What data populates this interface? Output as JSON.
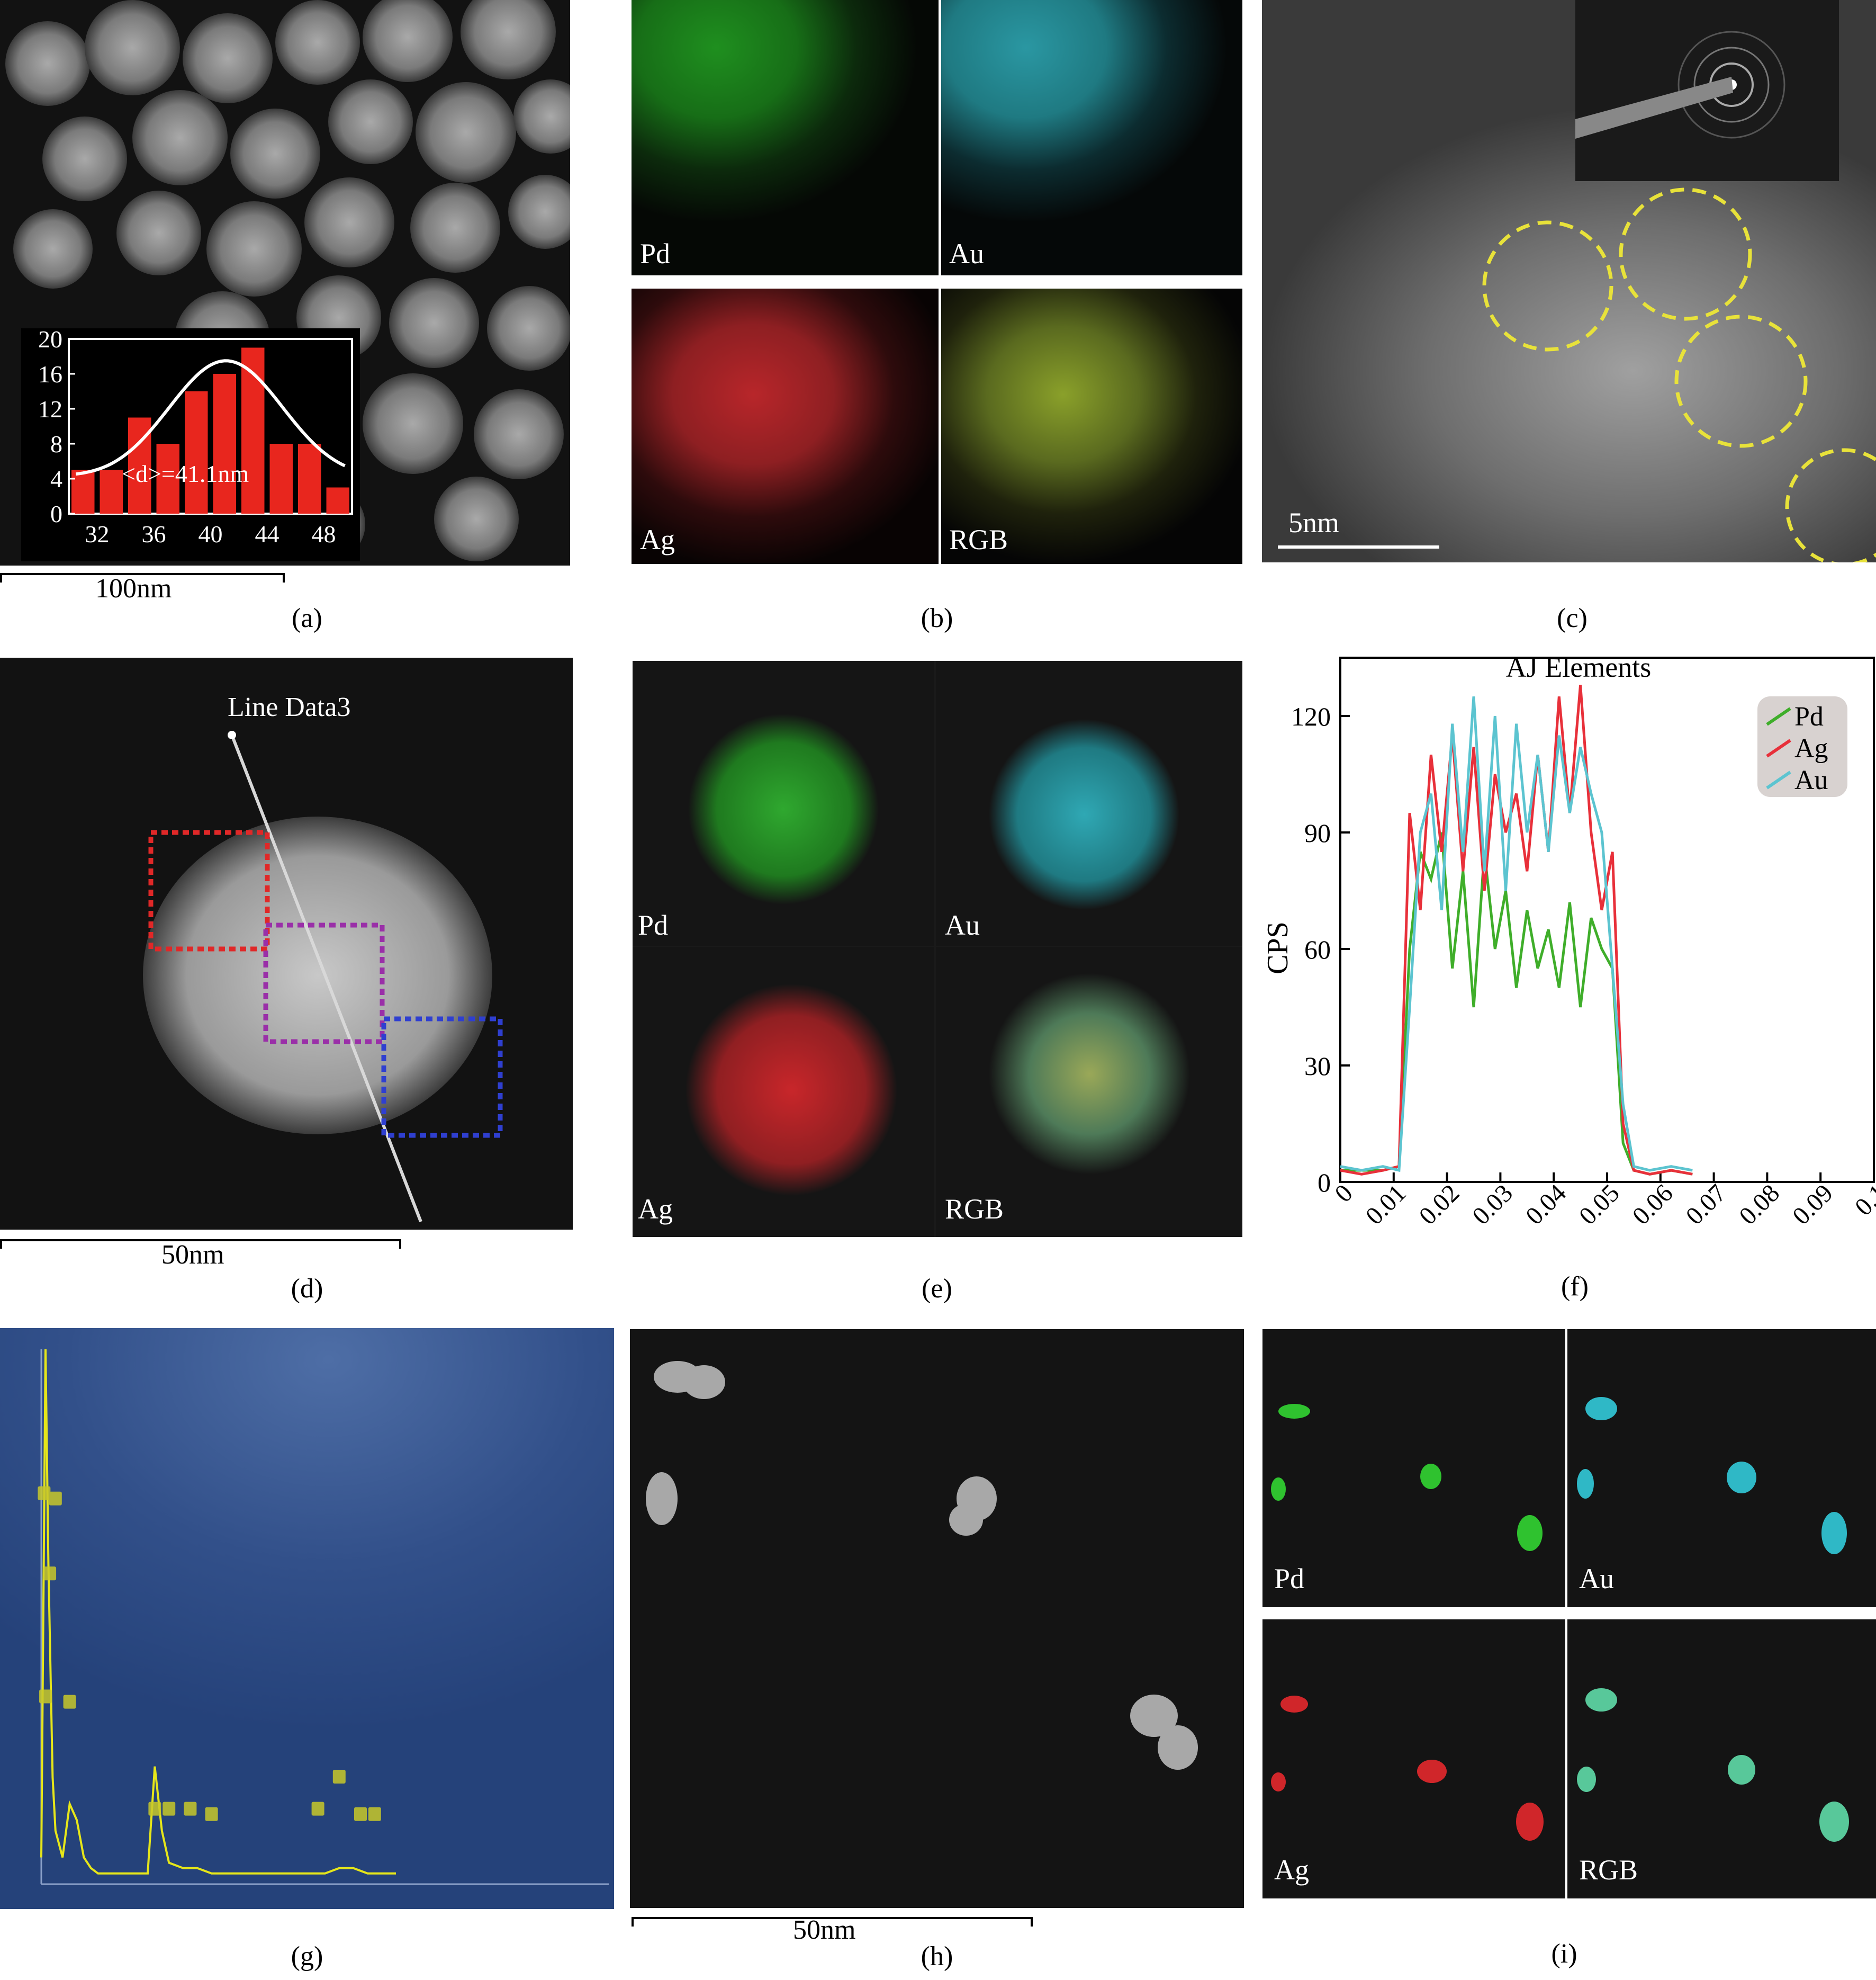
{
  "panels": {
    "a": {
      "caption": "(a)",
      "scale_bar": "100nm",
      "inset": {
        "chart_data": {
          "type": "bar",
          "y_ticks": [
            "0",
            "4",
            "8",
            "12",
            "16",
            "20"
          ],
          "x_ticks": [
            "32",
            "36",
            "40",
            "44",
            "48"
          ],
          "categories": [
            31,
            33,
            35,
            37,
            39,
            41,
            43,
            45,
            47,
            49
          ],
          "values": [
            5,
            5,
            11,
            8,
            14,
            16,
            19,
            8,
            8,
            3
          ],
          "ylim": [
            0,
            20
          ],
          "xlim": [
            30,
            50
          ],
          "fit": "gaussian",
          "annotation": "<d>=41.1nm",
          "bar_color": "#e8261e",
          "fit_color": "#ffffff"
        }
      }
    },
    "b": {
      "caption": "(b)",
      "labels": {
        "pd": "Pd",
        "au": "Au",
        "ag": "Ag",
        "rgb": "RGB"
      }
    },
    "c": {
      "caption": "(c)",
      "scale_bar": "5nm"
    },
    "d": {
      "caption": "(d)",
      "scale_bar": "50nm",
      "line_label": "Line Data3"
    },
    "e": {
      "caption": "(e)",
      "labels": {
        "pd": "Pd",
        "au": "Au",
        "ag": "Ag",
        "rgb": "RGB"
      }
    },
    "f": {
      "caption": "(f)",
      "chart_data": {
        "type": "line",
        "title": "AJ Elements",
        "ylabel": "CPS",
        "xlabel": "",
        "xlim": [
          0,
          0.1
        ],
        "ylim": [
          0,
          135
        ],
        "x_ticks": [
          "0",
          "0.01",
          "0.02",
          "0.03",
          "0.04",
          "0.05",
          "0.06",
          "0.07",
          "0.08",
          "0.09",
          "0.1"
        ],
        "y_ticks": [
          "0",
          "30",
          "60",
          "90",
          "120"
        ],
        "legend_position": "top-right",
        "x": [
          0,
          0.004,
          0.008,
          0.011,
          0.013,
          0.015,
          0.017,
          0.019,
          0.021,
          0.023,
          0.025,
          0.027,
          0.029,
          0.031,
          0.033,
          0.035,
          0.037,
          0.039,
          0.041,
          0.043,
          0.045,
          0.047,
          0.049,
          0.051,
          0.053,
          0.055,
          0.058,
          0.062,
          0.066
        ],
        "series": [
          {
            "name": "Pd",
            "color": "#3fae2a",
            "values": [
              3,
              3,
              3,
              4,
              60,
              85,
              78,
              90,
              55,
              80,
              45,
              85,
              60,
              75,
              50,
              70,
              55,
              65,
              50,
              72,
              45,
              68,
              60,
              55,
              10,
              3,
              2,
              3,
              2
            ]
          },
          {
            "name": "Ag",
            "color": "#e8303a",
            "values": [
              3,
              2,
              3,
              4,
              95,
              70,
              110,
              85,
              115,
              80,
              112,
              75,
              105,
              90,
              100,
              80,
              110,
              85,
              125,
              95,
              128,
              90,
              70,
              85,
              15,
              3,
              2,
              3,
              2
            ]
          },
          {
            "name": "Au",
            "color": "#5cc4d0",
            "values": [
              4,
              3,
              4,
              3,
              45,
              90,
              100,
              70,
              118,
              85,
              125,
              80,
              120,
              75,
              118,
              90,
              110,
              85,
              115,
              95,
              112,
              100,
              90,
              55,
              20,
              4,
              3,
              4,
              3
            ]
          }
        ]
      }
    },
    "g": {
      "caption": "(g)",
      "chart_data": {
        "type": "line",
        "title": "",
        "xlabel": "",
        "ylabel": "",
        "series_color": "#e6e61a",
        "x": [
          0,
          0.3,
          0.5,
          0.8,
          1.0,
          1.5,
          2.0,
          2.5,
          3.0,
          3.5,
          4.0,
          5.0,
          6.0,
          7.0,
          7.5,
          8.0,
          8.5,
          9.0,
          10.0,
          11.0,
          12.0,
          14.0,
          16.0,
          18.0,
          20.0,
          21.0,
          22.0,
          23.0,
          24.0,
          25.0
        ],
        "values": [
          5,
          100,
          60,
          20,
          10,
          5,
          15,
          12,
          5,
          3,
          2,
          2,
          2,
          2,
          2,
          22,
          10,
          4,
          3,
          3,
          2,
          2,
          2,
          2,
          2,
          3,
          3,
          2,
          2,
          2
        ],
        "xlim": [
          0,
          40
        ],
        "ylim": [
          0,
          100
        ]
      }
    },
    "h": {
      "caption": "(h)",
      "scale_bar": "50nm"
    },
    "i": {
      "caption": "(i)",
      "labels": {
        "pd": "Pd",
        "au": "Au",
        "ag": "Ag",
        "rgb": "RGB"
      }
    }
  },
  "colors": {
    "pd_green": "#2fc22f",
    "au_cyan": "#2fb8c6",
    "ag_red": "#d0262a",
    "dashed_yellow": "#e8e23a",
    "box_red": "#e02828",
    "box_purple": "#9a2fa8",
    "box_blue": "#2f3fd0"
  }
}
